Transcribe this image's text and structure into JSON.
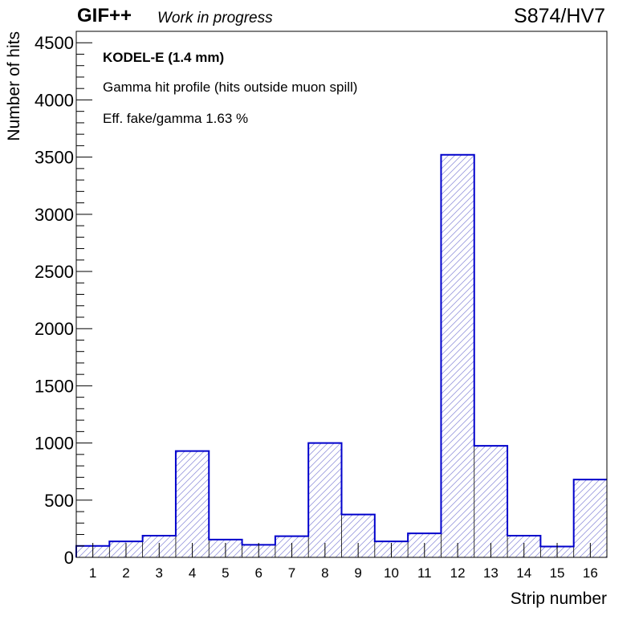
{
  "header": {
    "brand": "GIF++",
    "status": "Work in progress",
    "run_label": "S874/HV7"
  },
  "annotations": {
    "chamber": "KODEL-E (1.4 mm)",
    "profile": "Gamma hit profile (hits outside muon spill)",
    "efficiency": "Eff. fake/gamma 1.63 %"
  },
  "colors": {
    "line": "#0000cc",
    "hatch": "#9999dd",
    "axis": "#000000"
  },
  "chart_data": {
    "type": "bar",
    "style": "histogram step with diagonal hatch fill",
    "xlabel": "Strip number",
    "ylabel": "Number of hits",
    "categories": [
      "1",
      "2",
      "3",
      "4",
      "5",
      "6",
      "7",
      "8",
      "9",
      "10",
      "11",
      "12",
      "13",
      "14",
      "15",
      "16"
    ],
    "values": [
      100,
      140,
      190,
      930,
      155,
      110,
      185,
      1000,
      375,
      140,
      210,
      3520,
      975,
      190,
      95,
      680
    ],
    "ylim": [
      0,
      4600
    ],
    "yticks": [
      0,
      500,
      1000,
      1500,
      2000,
      2500,
      3000,
      3500,
      4000,
      4500
    ],
    "grid": false,
    "legend": "none"
  }
}
